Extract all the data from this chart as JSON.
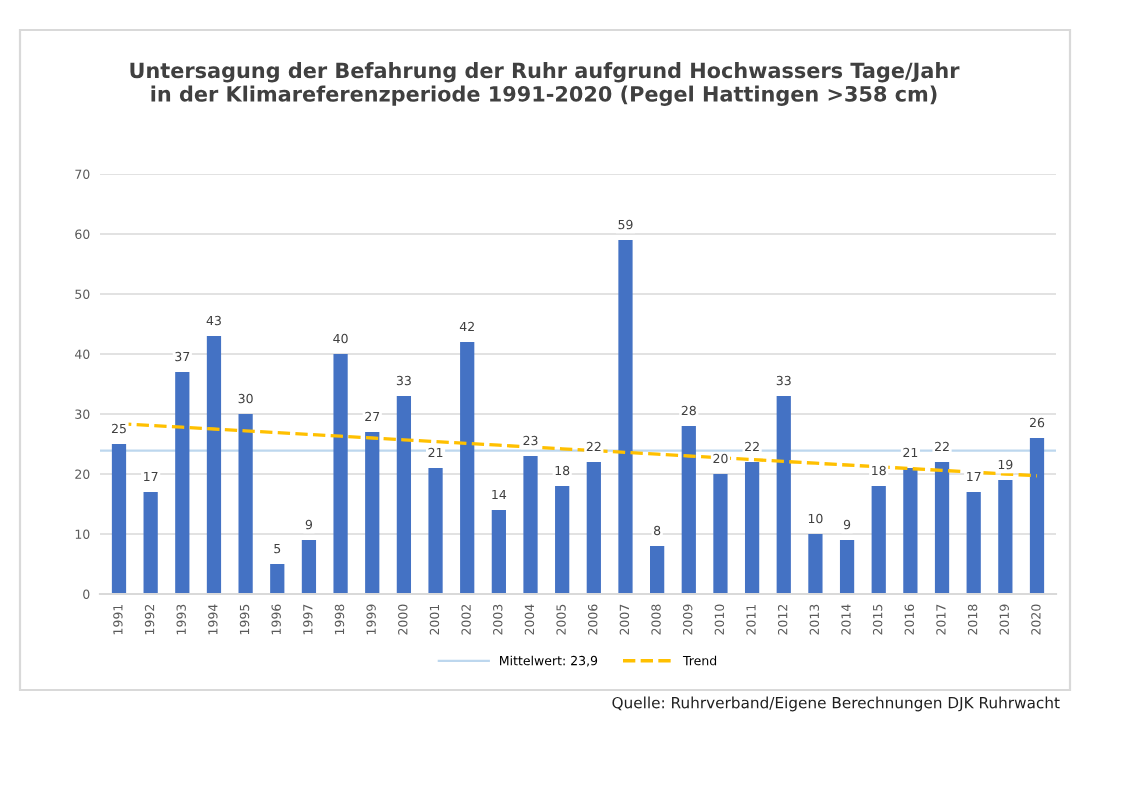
{
  "chart_data": {
    "type": "bar",
    "title": "Untersagung der Befahrung der Ruhr aufgrund Hochwassers Tage/Jahr\nin der Klimareferenzperiode 1991-2020 (Pegel Hattingen >358 cm)",
    "categories": [
      "1991",
      "1992",
      "1993",
      "1994",
      "1995",
      "1996",
      "1997",
      "1998",
      "1999",
      "2000",
      "2001",
      "2002",
      "2003",
      "2004",
      "2005",
      "2006",
      "2007",
      "2008",
      "2009",
      "2010",
      "2011",
      "2012",
      "2013",
      "2014",
      "2015",
      "2016",
      "2017",
      "2018",
      "2019",
      "2020"
    ],
    "series": [
      {
        "color": "#4472c4",
        "values": [
          25,
          17,
          37,
          43,
          30,
          5,
          9,
          40,
          27,
          33,
          21,
          42,
          14,
          23,
          18,
          22,
          59,
          8,
          28,
          20,
          22,
          33,
          10,
          9,
          18,
          21,
          22,
          17,
          19,
          26
        ],
        "value_labels": [
          "25",
          "17",
          "37",
          "43",
          "30",
          "5",
          "9",
          "40",
          "27",
          "33",
          "21",
          "42",
          "14",
          "23",
          "18",
          "22",
          "59",
          "8",
          "28",
          "20",
          "22",
          "33",
          "10",
          "9",
          "18",
          "21",
          "22",
          "17",
          "19",
          "26"
        ]
      },
      {
        "type": "line",
        "name": "Trend",
        "color": "#ffc000",
        "line_style": "dashed",
        "values": [
          28.4,
          28.1,
          27.8,
          27.5,
          27.2,
          26.9,
          26.6,
          26.3,
          26.0,
          25.7,
          25.4,
          25.1,
          24.8,
          24.5,
          24.2,
          23.9,
          23.6,
          23.3,
          23.0,
          22.7,
          22.4,
          22.1,
          21.8,
          21.5,
          21.2,
          20.9,
          20.6,
          20.3,
          20.0,
          19.7
        ]
      }
    ],
    "ref_lines": [
      {
        "axis": "y",
        "value": 23.9,
        "label": "Mittelwert: 23,9",
        "color": "#bdd7ee",
        "line_style": "solid"
      }
    ],
    "ylim": [
      0,
      70
    ],
    "yticks": [
      0,
      10,
      20,
      30,
      40,
      50,
      60,
      70
    ],
    "grid": "y",
    "legend": "bottom",
    "annotations": [
      "Quelle: Ruhrverband/Eigene Berechnungen DJK Ruhrwacht"
    ]
  }
}
